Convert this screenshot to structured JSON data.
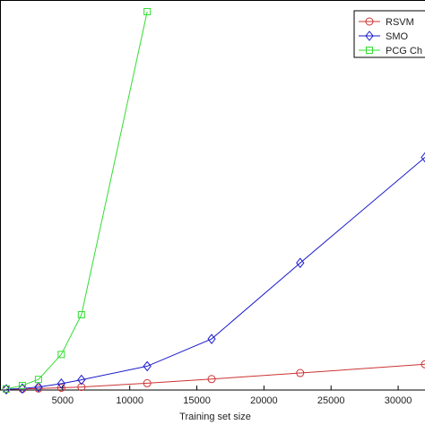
{
  "chart_data": {
    "type": "line",
    "xlabel": "Training set size",
    "ylabel": "",
    "title": "",
    "xlim": [
      0,
      32000
    ],
    "ylim": [
      0,
      100
    ],
    "xticks": [
      5000,
      10000,
      15000,
      20000,
      25000,
      30000
    ],
    "grid": false,
    "legend_position": "top-right",
    "series": [
      {
        "name": "RSVM",
        "color": "#cc3333",
        "marker": "circle",
        "x": [
          800,
          2000,
          3200,
          4900,
          6400,
          11300,
          16100,
          22700,
          32000
        ],
        "y": [
          0.2,
          0.3,
          0.4,
          0.6,
          0.8,
          1.8,
          2.9,
          4.5,
          6.8
        ]
      },
      {
        "name": "SMO",
        "color": "#1a1acc",
        "marker": "diamond",
        "x": [
          800,
          2000,
          3200,
          4900,
          6400,
          11300,
          16100,
          22700,
          32000
        ],
        "y": [
          0.2,
          0.4,
          0.8,
          1.7,
          2.7,
          6.3,
          13.5,
          33.6,
          61.5
        ]
      },
      {
        "name": "PCG Ch",
        "color": "#33dd33",
        "marker": "square",
        "x": [
          800,
          2000,
          3200,
          4900,
          6400,
          11300
        ],
        "y": [
          0.3,
          1.2,
          2.8,
          9.4,
          19.9,
          100
        ]
      }
    ]
  }
}
